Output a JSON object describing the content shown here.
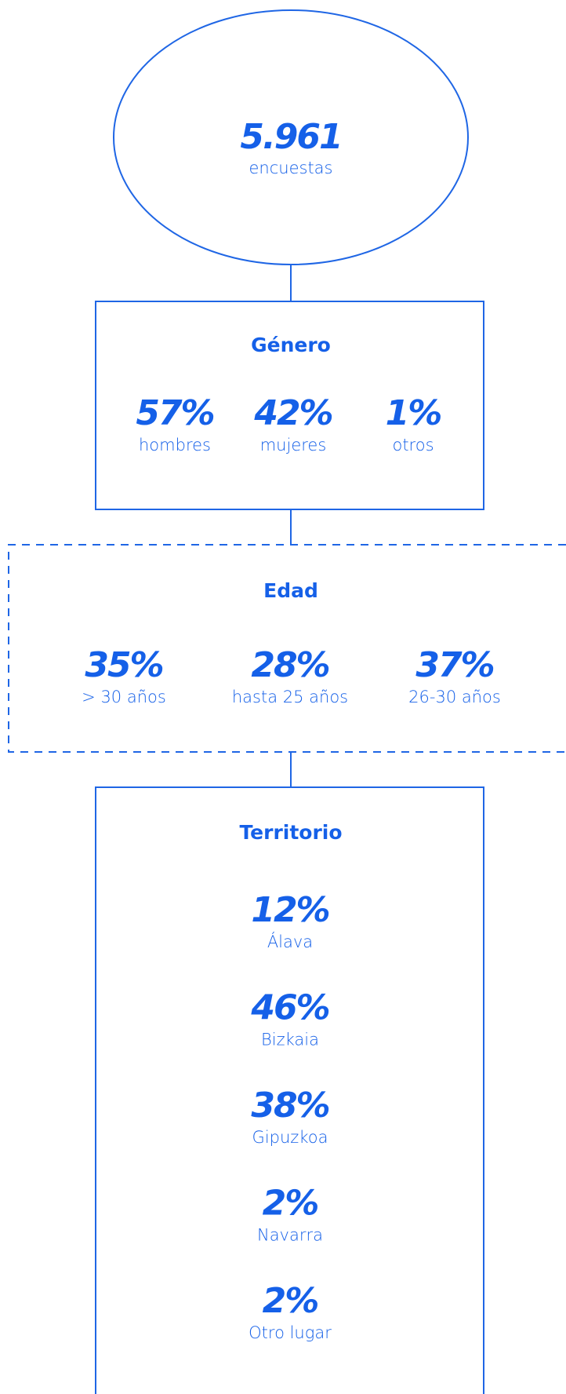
{
  "total": {
    "value": "5.961",
    "label": "encuestas"
  },
  "sections": [
    {
      "title": "Género",
      "items": [
        {
          "value": "57%",
          "label": "hombres"
        },
        {
          "value": "42%",
          "label": "mujeres"
        },
        {
          "value": "1%",
          "label": "otros"
        }
      ]
    },
    {
      "title": "Edad",
      "items": [
        {
          "value": "35%",
          "label": "> 30 años"
        },
        {
          "value": "28%",
          "label": "hasta 25 años"
        },
        {
          "value": "37%",
          "label": "26-30 años"
        }
      ]
    },
    {
      "title": "Territorio",
      "items": [
        {
          "value": "12%",
          "label": "Álava"
        },
        {
          "value": "46%",
          "label": "Bizkaia"
        },
        {
          "value": "38%",
          "label": "Gipuzkoa"
        },
        {
          "value": "2%",
          "label": "Navarra"
        },
        {
          "value": "2%",
          "label": "Otro lugar"
        }
      ]
    }
  ]
}
